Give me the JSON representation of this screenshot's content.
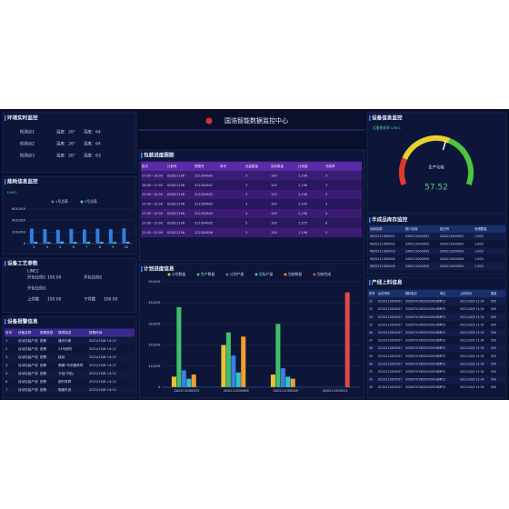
{
  "header": {
    "title": "国浩智能数据监控中心"
  },
  "env": {
    "title": "环境实时监控",
    "rows": [
      [
        "检测点1",
        "温度：26°",
        "湿度：64"
      ],
      [
        "检测点2",
        "温度：26°",
        "湿度：64"
      ],
      [
        "检测点3",
        "温度：26°",
        "湿度：63"
      ]
    ]
  },
  "energy": {
    "title": "能耗信息监控",
    "subtitle": "LINE1",
    "chart": {
      "type": "bar",
      "categories": [
        "3",
        "4",
        "5",
        "6",
        "7",
        "8",
        "9",
        "10"
      ],
      "series": [
        {
          "name": "1号总表",
          "color": "#2f7fe0",
          "values": [
            260000,
            250000,
            240000,
            255000,
            245000,
            260000,
            250000,
            265000
          ]
        },
        {
          "name": "2号总表",
          "color": "#49c6e5",
          "values": [
            30000,
            25000,
            35000,
            28000,
            30000,
            32000,
            27000,
            30000
          ]
        }
      ],
      "ylim": [
        0,
        600000
      ],
      "yticks": [
        0,
        {
          "value": 200000,
          "label": "200,000"
        },
        {
          "value": 400000,
          "label": "400,000"
        },
        {
          "value": 600000,
          "label": "600,000"
        }
      ]
    }
  },
  "process": {
    "title": "设备工艺参数",
    "line": "LINE2",
    "rows": [
      [
        "开包比例1",
        "100.00",
        "开包比例2"
      ],
      [
        "开包比例3"
      ],
      [
        "上件数",
        "100.00",
        "下件数",
        "100.00"
      ]
    ]
  },
  "alarm": {
    "title": "设备报警信息",
    "columns": [
      "序号",
      "设备名称",
      "报警类型",
      "故障描述",
      "报警时间"
    ],
    "rows": [
      [
        "1",
        "自动包装产线",
        "报警",
        "通讯中断",
        "2021/10/8 14:12"
      ],
      [
        "2",
        "自动包装产线",
        "报警",
        "24号超时",
        "2021/10/8 14:12"
      ],
      [
        "3",
        "自动包装产线",
        "报警",
        "缺纸",
        "2021/10/8 14:12"
      ],
      [
        "4",
        "自动包装产线",
        "报警",
        "撕膜7号机器故障",
        "2021/10/8 14:12"
      ],
      [
        "5",
        "自动包装产线",
        "报警",
        "卡纸(不粘)",
        "2021/10/8 14:12"
      ],
      [
        "6",
        "自动包装产线",
        "报警",
        "超时故障",
        "2021/10/8 14:12"
      ],
      [
        "7",
        "自动包装产线",
        "报警",
        "撕膜失效",
        "2021/10/8 14:12"
      ]
    ]
  },
  "packing": {
    "title": "包装进度跟踪",
    "columns": [
      "批次",
      "计划号",
      "规格号",
      "单号",
      "包装数量",
      "实际数量",
      "计划量",
      "完成率"
    ],
    "rows": [
      [
        "17:00~18:00",
        "8ZJ021106",
        "221004600",
        "",
        "3",
        "100",
        "1,196",
        "3"
      ],
      [
        "16:00~17:00",
        "8ZJ021106",
        "221004601",
        "",
        "3",
        "100",
        "1,196",
        "3"
      ],
      [
        "15:00~16:00",
        "8ZJ021106",
        "221004602",
        "",
        "3",
        "100",
        "1,196",
        "3"
      ],
      [
        "14:00~15:00",
        "8ZJ021106",
        "221004603",
        "",
        "3",
        "100",
        "2,595",
        "3"
      ],
      [
        "13:00~14:00",
        "8ZJ021106",
        "221004604",
        "",
        "4",
        "100",
        "1,196",
        "4"
      ],
      [
        "12:00~13:00",
        "8ZJ021106",
        "221004605",
        "",
        "5",
        "100",
        "1,572",
        "6"
      ],
      [
        "11:00~12:00",
        "8ZJ021106",
        "221004606",
        "",
        "5",
        "100",
        "1,196",
        "5"
      ]
    ]
  },
  "plan": {
    "title": "计划进度信息",
    "chart": {
      "type": "bar",
      "categories": [
        "ZA0211000003",
        "ZA0211000006",
        "ZA0211000009",
        "ZA0211000011"
      ],
      "series": [
        {
          "name": "计划数量",
          "color": "#e8c33a",
          "values": [
            5000,
            20000,
            6000,
            null
          ]
        },
        {
          "name": "生产数量",
          "color": "#3fbf6a",
          "values": [
            38000,
            26000,
            30000,
            null
          ]
        },
        {
          "name": "计划产量",
          "color": "#3b7fe0",
          "values": [
            8000,
            15000,
            9000,
            null
          ]
        },
        {
          "name": "实际产量",
          "color": "#2ec6c6",
          "values": [
            4000,
            7000,
            5000,
            null
          ]
        },
        {
          "name": "包装数量",
          "color": "#f0a030",
          "values": [
            6000,
            24000,
            4000,
            null
          ]
        },
        {
          "name": "包装完成",
          "color": "#e04848",
          "values": [
            null,
            null,
            null,
            45000
          ]
        }
      ],
      "ylim": [
        0,
        50000
      ],
      "yticks": [
        0,
        {
          "value": 10000,
          "label": "10,000"
        },
        {
          "value": 20000,
          "label": "20,000"
        },
        {
          "value": 30000,
          "label": "30,000"
        },
        {
          "value": 40000,
          "label": "40,000"
        },
        {
          "value": 50000,
          "label": "50,000"
        }
      ]
    }
  },
  "device": {
    "title": "设备信息监控",
    "subtitle": "设备能耗率 LINE1",
    "gauge": {
      "label": "生产功能",
      "value": 57.52,
      "min": 0,
      "max": 100
    }
  },
  "stock": {
    "title": "半成品库存监控",
    "columns": [
      "仓库名称",
      "缺口仓库",
      "批次号",
      "仓储数量"
    ],
    "rows": [
      [
        "MJ20211000001",
        "ZA0211000001",
        "ZA0211000001",
        "1,000"
      ],
      [
        "MJ20211000002",
        "ZA0211000002",
        "ZA0211000002",
        "1,000"
      ],
      [
        "MJ20211000003",
        "ZA0211000003",
        "ZA0211000003",
        "1,000"
      ],
      [
        "MJ20211000004",
        "ZA0211000004",
        "ZA0211000004",
        "1,000"
      ],
      [
        "MJ20211000005",
        "ZA0211000005",
        "ZA0211000005",
        "1,000"
      ]
    ]
  },
  "feed": {
    "title": "产线上料信息",
    "columns": [
      "序号",
      "后仓号码",
      "物料批次",
      "单位",
      "上料时间",
      "数量"
    ],
    "rows": [
      [
        "22",
        "SC20211000017",
        "20200701W2020091887",
        "PCS",
        "2021/10/9 11:34",
        "500"
      ],
      [
        "23",
        "SC20211000017",
        "20200701W2020091887",
        "PCS",
        "2021/10/9 11:34",
        "500"
      ],
      [
        "24",
        "SC20211000017",
        "20200701W2020091887",
        "PCS",
        "2021/10/9 11:34",
        "500"
      ],
      [
        "25",
        "SC20211000017",
        "20200701W2020091887",
        "PCS",
        "2021/10/9 11:34",
        "500"
      ],
      [
        "26",
        "SC20211000017",
        "20200701W2020091887",
        "PCS",
        "2021/10/9 11:34",
        "500"
      ],
      [
        "27",
        "SC20211000017",
        "20200701W2020091887",
        "PCS",
        "2021/10/9 11:34",
        "500"
      ],
      [
        "28",
        "SC20211000017",
        "20200701W2020091887",
        "PCS",
        "2021/10/9 11:34",
        "500"
      ],
      [
        "29",
        "SC20211000017",
        "20200701W2020091887",
        "PCS",
        "2021/10/9 11:34",
        "500"
      ],
      [
        "30",
        "SC20211000017",
        "20200701W2020091887",
        "PCS",
        "2021/10/9 11:34",
        "500"
      ],
      [
        "31",
        "SC20211000017",
        "20200701W2020091887",
        "PCS",
        "2021/10/9 11:34",
        "500"
      ],
      [
        "32",
        "SC20211000017",
        "20200701W2020091887",
        "PCS",
        "2021/10/9 11:34",
        "500"
      ],
      [
        "33",
        "SC20211000017",
        "20200701W2020091887",
        "PCS",
        "2021/10/9 11:34",
        "500"
      ]
    ]
  }
}
